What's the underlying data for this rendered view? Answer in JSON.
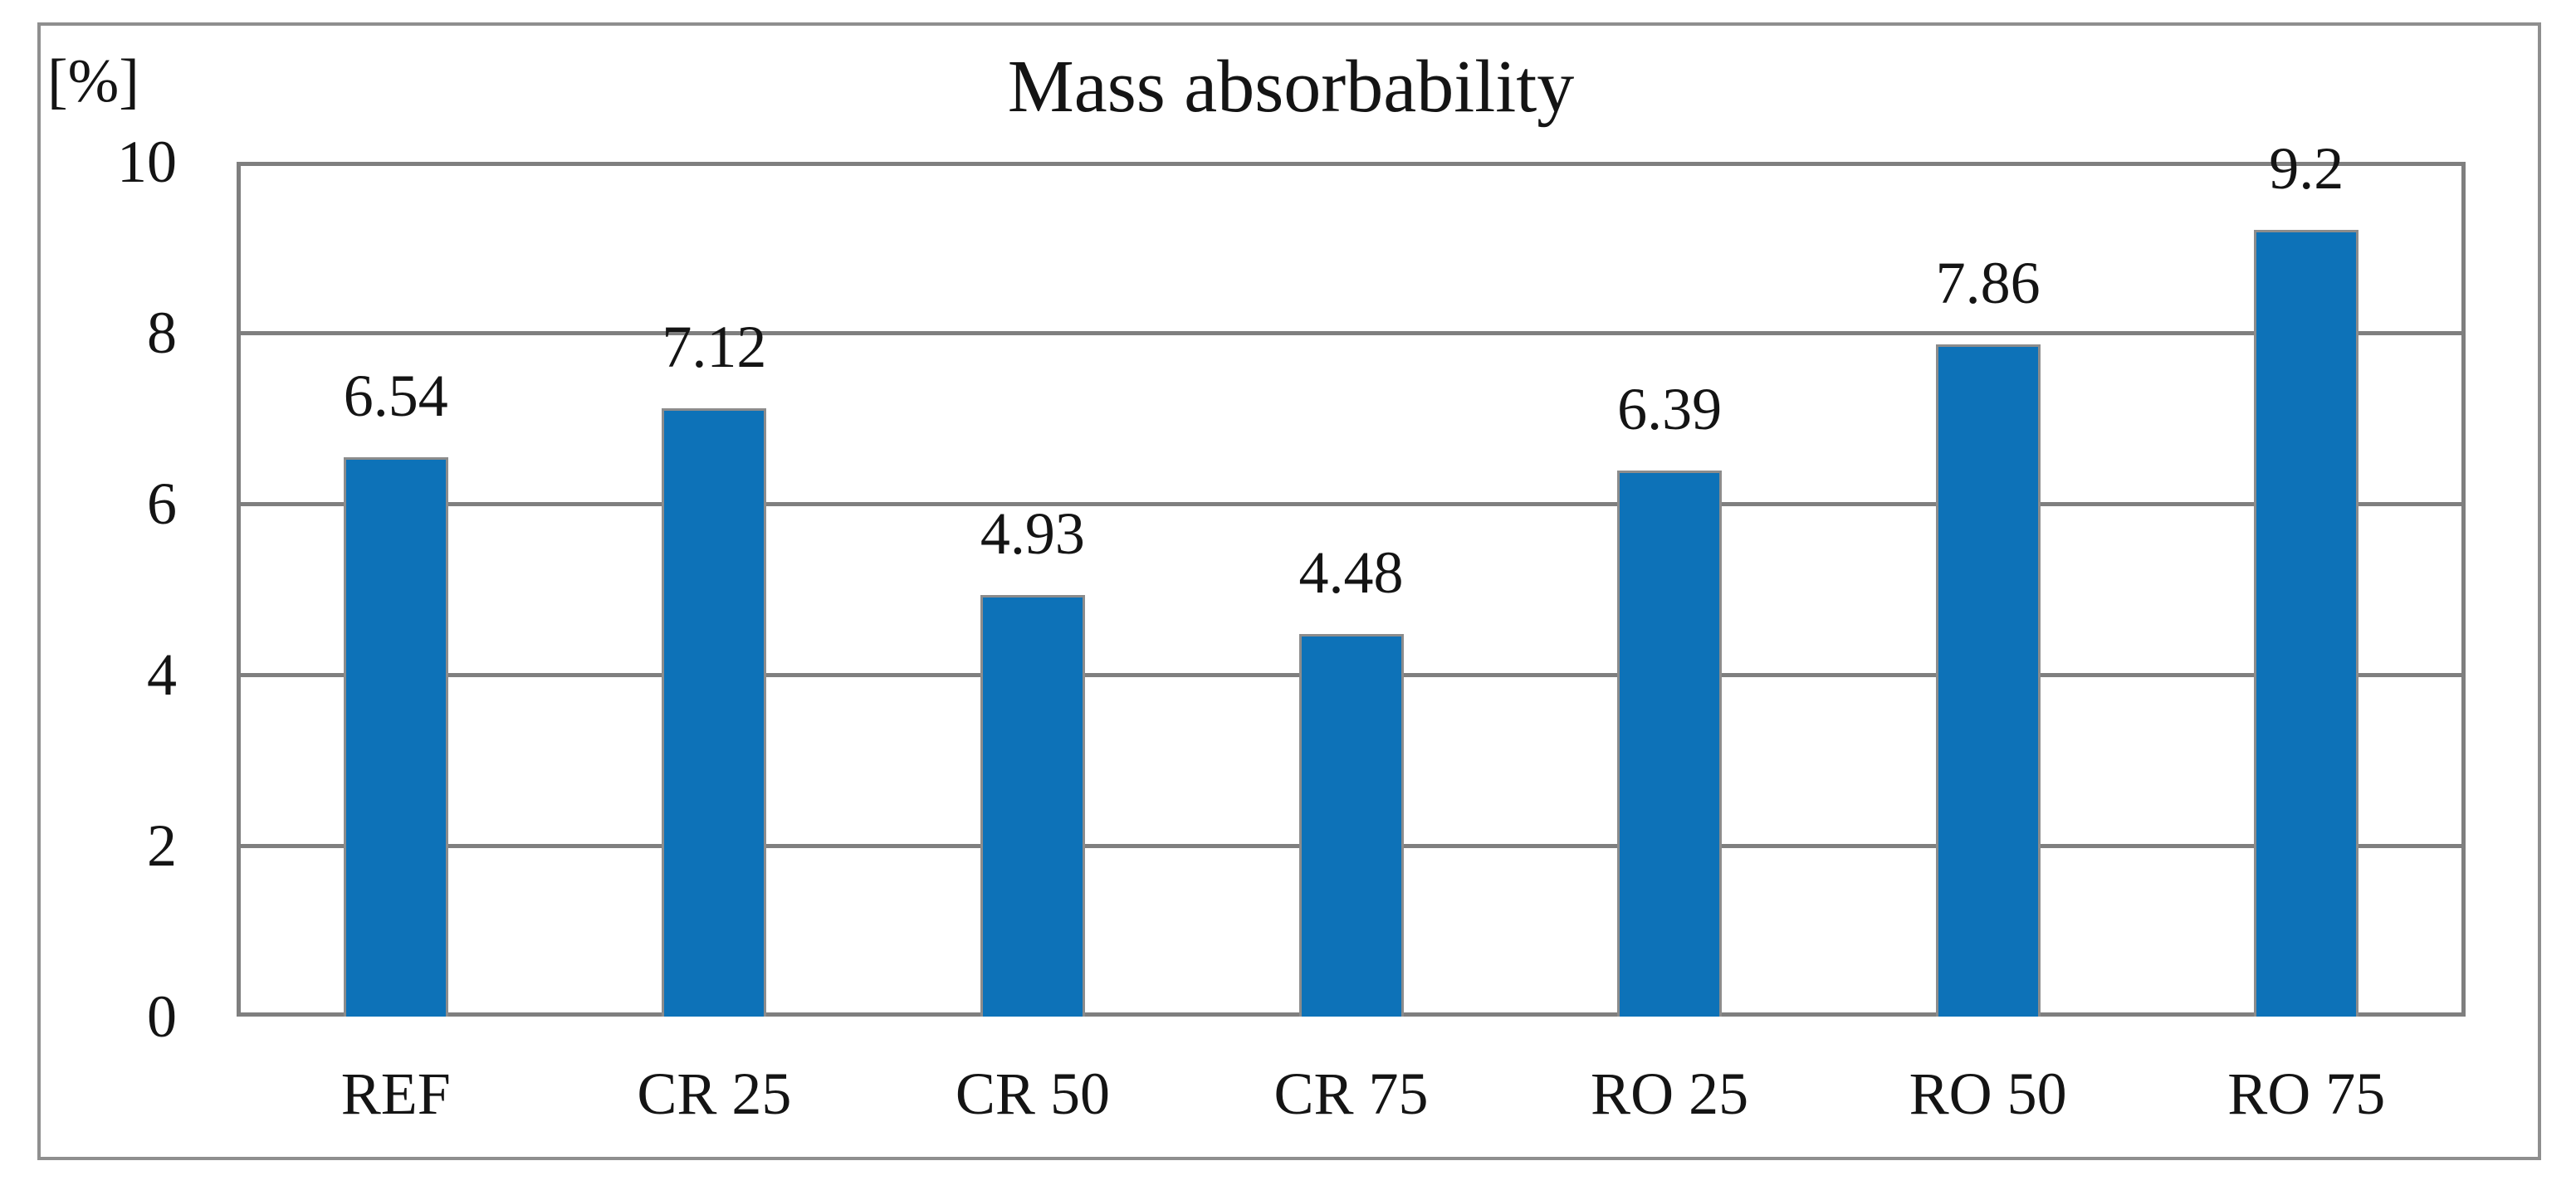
{
  "chart": {
    "title": "Mass absorbability",
    "y_unit_label": "[%]"
  },
  "chart_data": {
    "type": "bar",
    "title": "Mass absorbability",
    "xlabel": "",
    "ylabel": "[%]",
    "categories": [
      "REF",
      "CR 25",
      "CR 50",
      "CR 75",
      "RO 25",
      "RO 50",
      "RO 75"
    ],
    "values": [
      6.54,
      7.12,
      4.93,
      4.48,
      6.39,
      7.86,
      9.2
    ],
    "value_labels": [
      "6.54",
      "7.12",
      "4.93",
      "4.48",
      "6.39",
      "7.86",
      "9.2"
    ],
    "yticks": [
      0,
      2,
      4,
      6,
      8,
      10
    ],
    "ylim": [
      0,
      10
    ],
    "grid": true,
    "legend_position": "none",
    "colors": {
      "bar_fill": "#0d72b8",
      "bar_border": "#8c8c8c",
      "gridline": "#7f7f7f",
      "plot_border": "#7f7f7f",
      "outer_frame": "#8f8f8f",
      "text": "#141414",
      "background": "#ffffff"
    }
  }
}
